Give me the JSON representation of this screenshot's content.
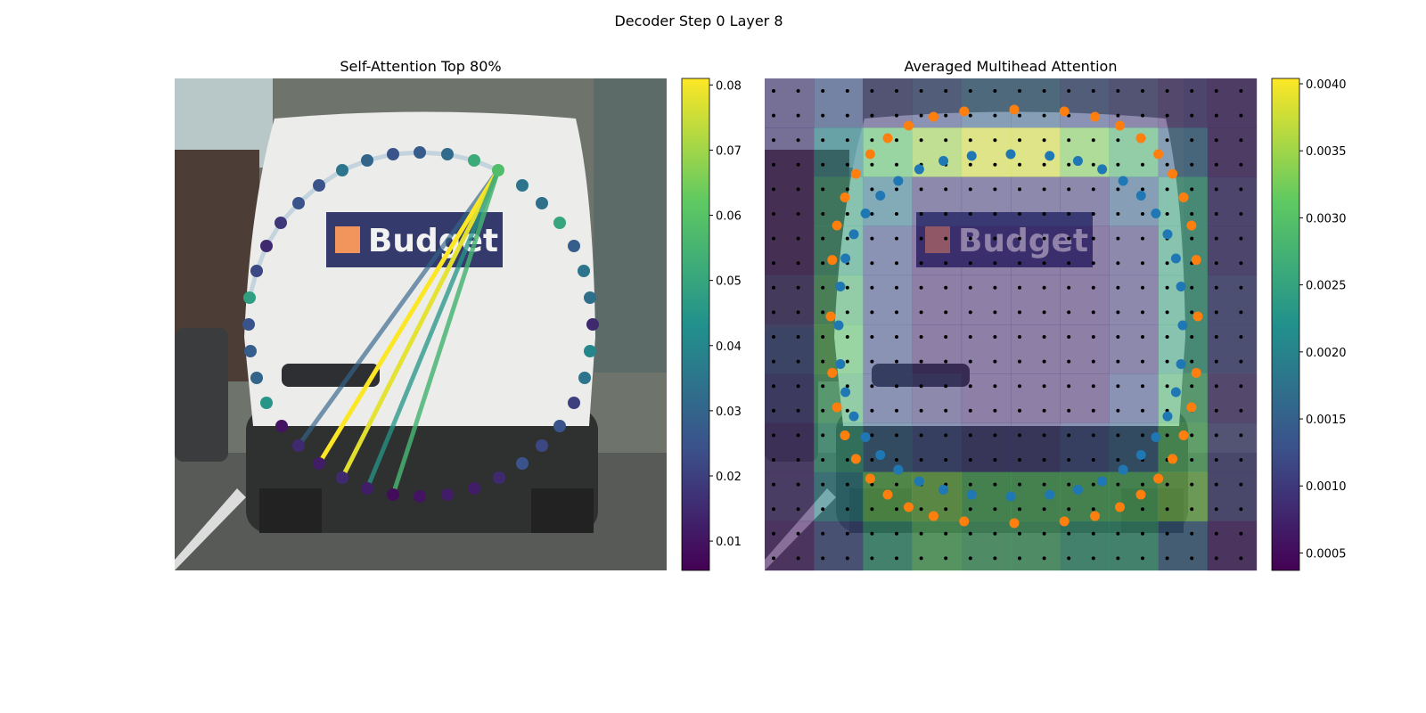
{
  "title": "Decoder Step 0 Layer 8",
  "chart_data": [
    {
      "type": "attention_scatter",
      "title": "Self-Attention Top 80%",
      "image_text": "Budget",
      "colormap": "viridis",
      "values": [
        0.048,
        0.022,
        0.015,
        0.018,
        0.025,
        0.025,
        0.035,
        0.03,
        0.025,
        0.027,
        0.032,
        0.052,
        0.058,
        0.035,
        0.033,
        0.05,
        0.028,
        0.035,
        0.033,
        0.015,
        0.04,
        0.035,
        0.02,
        0.025,
        0.022,
        0.025,
        0.015,
        0.012,
        0.012,
        0.01,
        0.008,
        0.012,
        0.015,
        0.012,
        0.015,
        0.01,
        0.045,
        0.03,
        0.028,
        0.025
      ],
      "line_values": [
        0.03,
        0.081,
        0.078,
        0.045,
        0.055
      ],
      "colorbar_lim": [
        0.0055,
        0.081
      ],
      "colorbar_ticks": [
        0.01,
        0.02,
        0.03,
        0.04,
        0.05,
        0.06,
        0.07,
        0.08
      ]
    },
    {
      "type": "heatmap",
      "title": "Averaged Multihead Attention",
      "image_text": "Budget",
      "colormap": "viridis",
      "values": [
        [
          0.0008,
          0.0012,
          0.001,
          0.0012,
          0.0015,
          0.0015,
          0.0012,
          0.001,
          0.0008,
          0.0006
        ],
        [
          0.0008,
          0.002,
          0.003,
          0.0035,
          0.0038,
          0.0038,
          0.0033,
          0.0028,
          0.0015,
          0.0006
        ],
        [
          0.0008,
          0.0025,
          0.0018,
          0.001,
          0.001,
          0.001,
          0.001,
          0.0015,
          0.0025,
          0.0008
        ],
        [
          0.0008,
          0.0025,
          0.0012,
          0.0008,
          0.0008,
          0.0008,
          0.0008,
          0.001,
          0.0025,
          0.0008
        ],
        [
          0.001,
          0.0028,
          0.0012,
          0.0008,
          0.0008,
          0.0008,
          0.0008,
          0.001,
          0.0025,
          0.001
        ],
        [
          0.0012,
          0.003,
          0.0012,
          0.0008,
          0.0008,
          0.0008,
          0.0008,
          0.001,
          0.0025,
          0.001
        ],
        [
          0.001,
          0.0028,
          0.0012,
          0.001,
          0.0008,
          0.0008,
          0.0008,
          0.0012,
          0.0028,
          0.0008
        ],
        [
          0.0008,
          0.0025,
          0.0015,
          0.0012,
          0.001,
          0.001,
          0.0012,
          0.0015,
          0.003,
          0.001
        ],
        [
          0.0008,
          0.002,
          0.0032,
          0.0033,
          0.003,
          0.003,
          0.003,
          0.003,
          0.0033,
          0.001
        ],
        [
          0.0006,
          0.0012,
          0.0025,
          0.003,
          0.0028,
          0.0028,
          0.0025,
          0.0025,
          0.0015,
          0.0006
        ]
      ],
      "point_colors": [
        "#1f77b4",
        "#ff7f0e"
      ],
      "colorbar_lim": [
        0.00037,
        0.00404
      ],
      "colorbar_ticks": [
        0.0005,
        {
          "value": 0.001,
          "label": "0.0010"
        },
        0.0015,
        {
          "value": 0.002,
          "label": "0.0020"
        },
        0.0025,
        {
          "value": 0.003,
          "label": "0.0030"
        },
        0.0035,
        {
          "value": 0.004,
          "label": "0.0040"
        }
      ]
    }
  ]
}
